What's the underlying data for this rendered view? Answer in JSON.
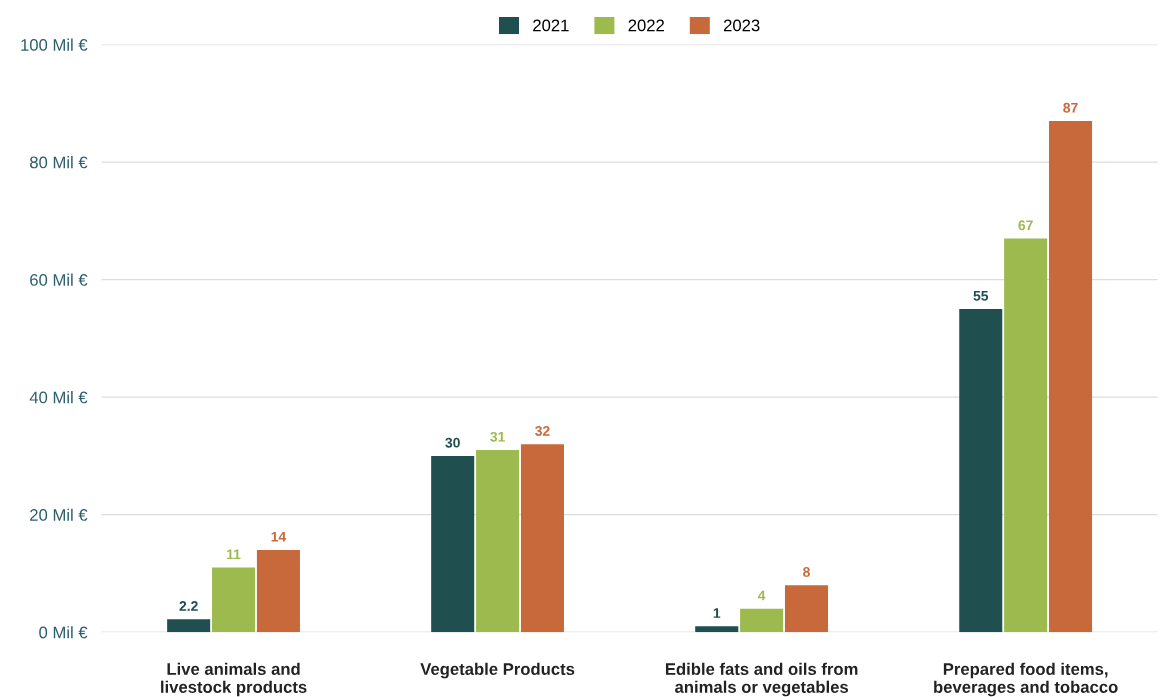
{
  "chart_data": {
    "type": "bar",
    "categories": [
      "Live animals and\nlivestock products",
      "Vegetable Products",
      "Edible fats and oils from\nanimals or vegetables",
      "Prepared food items,\nbeverages and tobacco"
    ],
    "series": [
      {
        "name": "2021",
        "color": "#1f4f4f",
        "values": [
          2.2,
          30,
          1,
          55
        ]
      },
      {
        "name": "2022",
        "color": "#9cba4e",
        "values": [
          11,
          31,
          4,
          67
        ]
      },
      {
        "name": "2023",
        "color": "#c7693a",
        "values": [
          14,
          32,
          8,
          87
        ]
      }
    ],
    "ylim": [
      0,
      100
    ],
    "yticks": [
      {
        "value": 0,
        "label": "0 Mil €"
      },
      {
        "value": 20,
        "label": "20 Mil €"
      },
      {
        "value": 40,
        "label": "40 Mil €"
      },
      {
        "value": 60,
        "label": "60 Mil €"
      },
      {
        "value": 80,
        "label": "80 Mil €"
      },
      {
        "value": 100,
        "label": "100 Mil €"
      }
    ],
    "grid": "y",
    "legend": "top",
    "data_labels": true
  }
}
